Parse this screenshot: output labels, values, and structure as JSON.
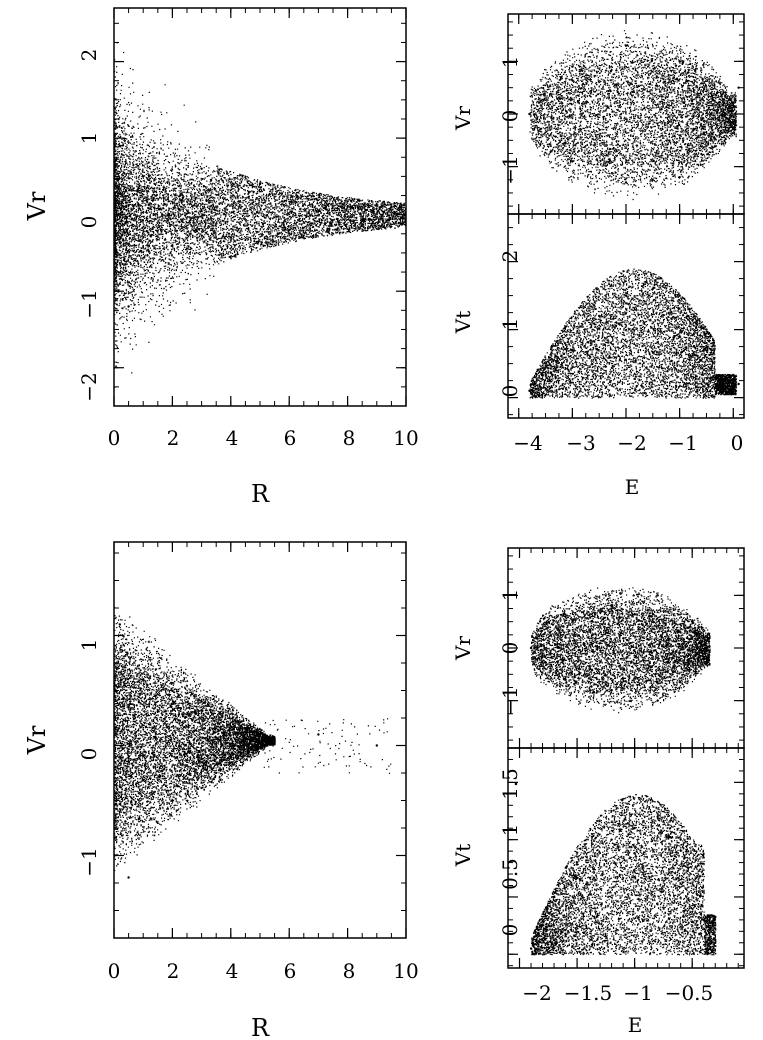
{
  "chart_data": [
    {
      "type": "scatter",
      "xlabel": "R",
      "ylabel": "Vr",
      "xlim": [
        0,
        10
      ],
      "ylim": [
        -2.5,
        2.7
      ],
      "xticks": [
        "0",
        "2",
        "4",
        "6",
        "8",
        "10"
      ],
      "yticks": [
        "-2",
        "-1",
        "0",
        "1",
        "2"
      ],
      "series": [
        {
          "values": [
            [
              0.2,
              0.9
            ],
            [
              0.5,
              -1.2
            ],
            [
              1.0,
              0.5
            ],
            [
              2.0,
              -0.4
            ],
            [
              3.0,
              0.6
            ],
            [
              4.0,
              -0.3
            ],
            [
              5.0,
              0.4
            ],
            [
              6.0,
              -0.2
            ],
            [
              8.0,
              0.1
            ],
            [
              10.0,
              0.0
            ]
          ]
        }
      ]
    },
    {
      "type": "scatter",
      "xlabel": "",
      "ylabel": "Vr",
      "xlim": [
        -4.2,
        0.2
      ],
      "ylim": [
        -1.9,
        1.9
      ],
      "xticks": [],
      "yticks": [
        "-1",
        "0",
        "1"
      ],
      "series": [
        {
          "values": [
            [
              -3.8,
              0.0
            ],
            [
              -3.0,
              0.9
            ],
            [
              -3.0,
              -0.9
            ],
            [
              -2.0,
              1.3
            ],
            [
              -2.0,
              -1.3
            ],
            [
              -1.0,
              1.0
            ],
            [
              -1.0,
              -1.2
            ],
            [
              -0.3,
              0.4
            ],
            [
              0.1,
              0.5
            ]
          ]
        }
      ]
    },
    {
      "type": "scatter",
      "xlabel": "E",
      "ylabel": "Vt",
      "xlim": [
        -4.2,
        0.2
      ],
      "ylim": [
        -0.3,
        2.7
      ],
      "xticks": [
        "-4",
        "-3",
        "-2",
        "-1",
        "0"
      ],
      "yticks": [
        "0",
        "1",
        "2"
      ],
      "series": [
        {
          "values": [
            [
              -3.8,
              0.1
            ],
            [
              -3.0,
              0.7
            ],
            [
              -2.5,
              1.2
            ],
            [
              -2.0,
              1.5
            ],
            [
              -1.5,
              1.6
            ],
            [
              -1.0,
              1.5
            ],
            [
              -0.5,
              1.0
            ],
            [
              -0.3,
              0.2
            ],
            [
              0.1,
              0.2
            ]
          ]
        }
      ]
    },
    {
      "type": "scatter",
      "xlabel": "R",
      "ylabel": "Vr",
      "xlim": [
        0,
        10
      ],
      "ylim": [
        -1.75,
        1.85
      ],
      "xticks": [
        "0",
        "2",
        "4",
        "6",
        "8",
        "10"
      ],
      "yticks": [
        "-1",
        "0",
        "1"
      ],
      "series": [
        {
          "values": [
            [
              0.2,
              1.1
            ],
            [
              0.5,
              -1.2
            ],
            [
              1.0,
              0.6
            ],
            [
              2.0,
              -0.5
            ],
            [
              3.0,
              0.4
            ],
            [
              4.0,
              -0.1
            ],
            [
              5.0,
              0.1
            ],
            [
              7.0,
              0.1
            ],
            [
              9.0,
              0.0
            ]
          ]
        }
      ]
    },
    {
      "type": "scatter",
      "xlabel": "",
      "ylabel": "Vr",
      "xlim": [
        -2.1,
        -0.05
      ],
      "ylim": [
        -1.9,
        1.9
      ],
      "xticks": [],
      "yticks": [
        "-1",
        "0",
        "1"
      ],
      "series": [
        {
          "values": [
            [
              -1.9,
              0.0
            ],
            [
              -1.6,
              0.6
            ],
            [
              -1.6,
              -0.6
            ],
            [
              -1.2,
              0.8
            ],
            [
              -1.2,
              -0.8
            ],
            [
              -0.8,
              1.0
            ],
            [
              -0.8,
              -1.0
            ],
            [
              -0.5,
              0.5
            ],
            [
              -0.4,
              0.2
            ]
          ]
        }
      ]
    },
    {
      "type": "scatter",
      "xlabel": "E",
      "ylabel": "Vt",
      "xlim": [
        -2.1,
        -0.05
      ],
      "ylim": [
        -0.12,
        1.8
      ],
      "xticks": [
        "-2",
        "-1.5",
        "-1",
        "-0.5"
      ],
      "yticks": [
        "0",
        "0.5",
        "1",
        "1.5"
      ],
      "series": [
        {
          "values": [
            [
              -1.9,
              0.05
            ],
            [
              -1.7,
              0.5
            ],
            [
              -1.5,
              0.8
            ],
            [
              -1.2,
              1.0
            ],
            [
              -1.0,
              1.1
            ],
            [
              -0.8,
              1.2
            ],
            [
              -0.6,
              1.0
            ],
            [
              -0.4,
              0.3
            ],
            [
              -0.3,
              0.1
            ]
          ]
        }
      ]
    }
  ]
}
